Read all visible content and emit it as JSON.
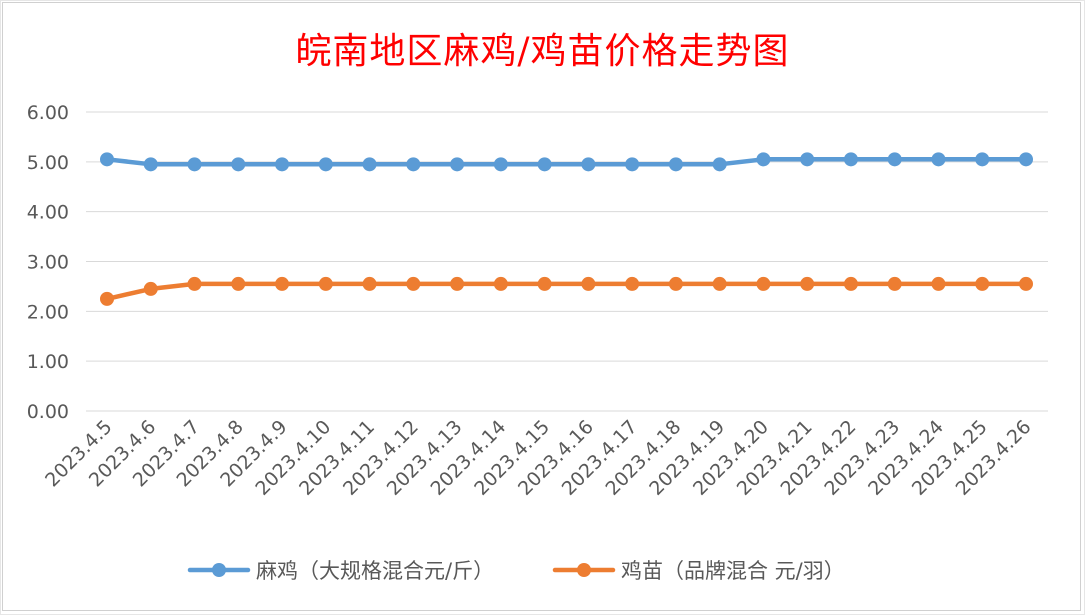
{
  "colors": {
    "title": "#ff0000",
    "series_1": "#5b9bd5",
    "series_2": "#ed7d31",
    "grid": "#d9d9d9",
    "tick_text": "#595959"
  },
  "chart_data": {
    "type": "line",
    "title": "皖南地区麻鸡/鸡苗价格走势图",
    "xlabel": "",
    "ylabel": "",
    "ylim": [
      0,
      6
    ],
    "grid": true,
    "legend_placement": "bottom-center",
    "y_ticks": [
      "0.00",
      "1.00",
      "2.00",
      "3.00",
      "4.00",
      "5.00",
      "6.00"
    ],
    "categories": [
      "2023.4.5",
      "2023.4.6",
      "2023.4.7",
      "2023.4.8",
      "2023.4.9",
      "2023.4.10",
      "2023.4.11",
      "2023.4.12",
      "2023.4.13",
      "2023.4.14",
      "2023.4.15",
      "2023.4.16",
      "2023.4.17",
      "2023.4.18",
      "2023.4.19",
      "2023.4.20",
      "2023.4.21",
      "2023.4.22",
      "2023.4.23",
      "2023.4.24",
      "2023.4.25",
      "2023.4.26"
    ],
    "series": [
      {
        "name": "麻鸡（大规格混合元/斤）",
        "color": "#5b9bd5",
        "values": [
          5.05,
          4.95,
          4.95,
          4.95,
          4.95,
          4.95,
          4.95,
          4.95,
          4.95,
          4.95,
          4.95,
          4.95,
          4.95,
          4.95,
          4.95,
          5.05,
          5.05,
          5.05,
          5.05,
          5.05,
          5.05,
          5.05
        ]
      },
      {
        "name": "鸡苗（品牌混合 元/羽）",
        "color": "#ed7d31",
        "values": [
          2.25,
          2.45,
          2.55,
          2.55,
          2.55,
          2.55,
          2.55,
          2.55,
          2.55,
          2.55,
          2.55,
          2.55,
          2.55,
          2.55,
          2.55,
          2.55,
          2.55,
          2.55,
          2.55,
          2.55,
          2.55,
          2.55
        ]
      }
    ]
  }
}
